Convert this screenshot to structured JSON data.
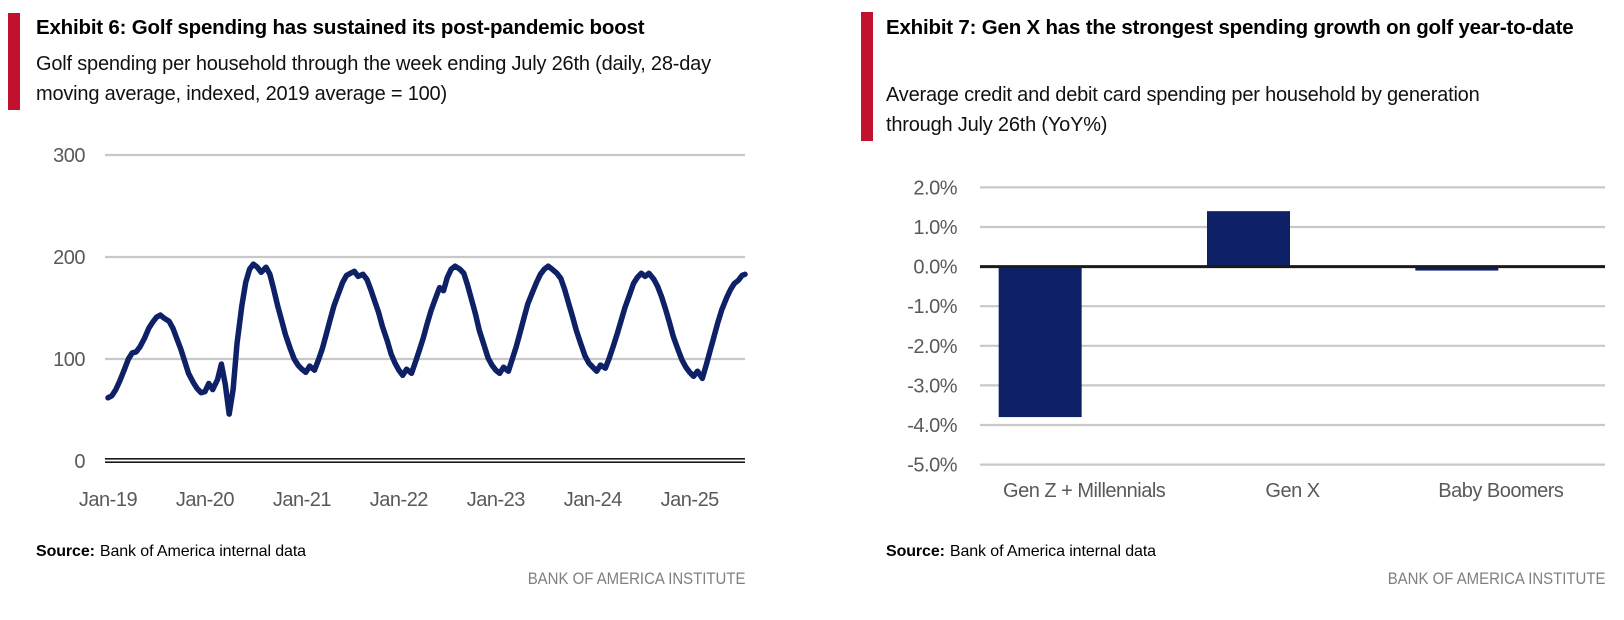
{
  "colors": {
    "accent_red": "#C2112E",
    "navy": "#0E2166",
    "gridline": "#C8C8C8",
    "axis_dark": "#1a1a1a",
    "tick_label": "#595959",
    "institute_gray": "#7f7f7f"
  },
  "left_panel": {
    "exhibit_title": "Exhibit 6: Golf spending has sustained its post-pandemic boost",
    "subtitle": "Golf spending per household through the week ending July 26th (daily, 28-day moving average, indexed, 2019 average = 100)",
    "source_label": "Source:",
    "source_text": "Bank of America internal data",
    "institute": "BANK OF AMERICA INSTITUTE"
  },
  "right_panel": {
    "exhibit_title": "Exhibit 7: Gen X has the strongest spending growth on golf year-to-date",
    "subtitle": "Average credit and debit card spending per household by generation through July 26th (YoY%)",
    "source_label": "Source:",
    "source_text": "Bank of America internal data",
    "institute": "BANK OF AMERICA INSTITUTE"
  },
  "chart_data": [
    {
      "type": "line",
      "title": "Golf spending per household, 28-day moving average, indexed (2019 average = 100)",
      "xlabel": "",
      "ylabel": "",
      "xlim": [
        2019.0,
        2025.57
      ],
      "ylim": [
        0,
        300
      ],
      "y_ticks": [
        0,
        100,
        200,
        300
      ],
      "x_ticks": [
        2019,
        2020,
        2021,
        2022,
        2023,
        2024,
        2025
      ],
      "x_tick_labels": [
        "Jan-19",
        "Jan-20",
        "Jan-21",
        "Jan-22",
        "Jan-23",
        "Jan-24",
        "Jan-25"
      ],
      "grid": true,
      "legend": false,
      "series": [
        {
          "name": "Golf spending index",
          "color": "#0E2166",
          "points": [
            [
              2019.0,
              62
            ],
            [
              2019.04,
              64
            ],
            [
              2019.08,
              70
            ],
            [
              2019.12,
              78
            ],
            [
              2019.17,
              90
            ],
            [
              2019.21,
              100
            ],
            [
              2019.25,
              106
            ],
            [
              2019.29,
              107
            ],
            [
              2019.33,
              112
            ],
            [
              2019.38,
              121
            ],
            [
              2019.42,
              130
            ],
            [
              2019.46,
              136
            ],
            [
              2019.5,
              141
            ],
            [
              2019.54,
              143
            ],
            [
              2019.58,
              140
            ],
            [
              2019.63,
              137
            ],
            [
              2019.67,
              130
            ],
            [
              2019.71,
              120
            ],
            [
              2019.75,
              110
            ],
            [
              2019.79,
              98
            ],
            [
              2019.83,
              86
            ],
            [
              2019.88,
              77
            ],
            [
              2019.92,
              71
            ],
            [
              2019.96,
              67
            ],
            [
              2020.0,
              68
            ],
            [
              2020.04,
              76
            ],
            [
              2020.08,
              70
            ],
            [
              2020.13,
              80
            ],
            [
              2020.17,
              95
            ],
            [
              2020.21,
              75
            ],
            [
              2020.25,
              46
            ],
            [
              2020.29,
              70
            ],
            [
              2020.33,
              115
            ],
            [
              2020.38,
              152
            ],
            [
              2020.42,
              175
            ],
            [
              2020.46,
              188
            ],
            [
              2020.5,
              193
            ],
            [
              2020.54,
              190
            ],
            [
              2020.58,
              185
            ],
            [
              2020.63,
              190
            ],
            [
              2020.67,
              183
            ],
            [
              2020.71,
              168
            ],
            [
              2020.75,
              152
            ],
            [
              2020.79,
              138
            ],
            [
              2020.83,
              124
            ],
            [
              2020.88,
              110
            ],
            [
              2020.92,
              100
            ],
            [
              2020.96,
              94
            ],
            [
              2021.0,
              90
            ],
            [
              2021.04,
              87
            ],
            [
              2021.08,
              93
            ],
            [
              2021.13,
              89
            ],
            [
              2021.17,
              99
            ],
            [
              2021.21,
              110
            ],
            [
              2021.25,
              124
            ],
            [
              2021.29,
              138
            ],
            [
              2021.33,
              152
            ],
            [
              2021.38,
              165
            ],
            [
              2021.42,
              175
            ],
            [
              2021.46,
              182
            ],
            [
              2021.5,
              184
            ],
            [
              2021.54,
              186
            ],
            [
              2021.58,
              181
            ],
            [
              2021.63,
              183
            ],
            [
              2021.67,
              178
            ],
            [
              2021.71,
              168
            ],
            [
              2021.75,
              157
            ],
            [
              2021.79,
              146
            ],
            [
              2021.83,
              132
            ],
            [
              2021.88,
              118
            ],
            [
              2021.92,
              105
            ],
            [
              2021.96,
              96
            ],
            [
              2022.0,
              89
            ],
            [
              2022.04,
              84
            ],
            [
              2022.08,
              90
            ],
            [
              2022.13,
              86
            ],
            [
              2022.17,
              97
            ],
            [
              2022.21,
              108
            ],
            [
              2022.25,
              120
            ],
            [
              2022.29,
              134
            ],
            [
              2022.33,
              147
            ],
            [
              2022.38,
              160
            ],
            [
              2022.42,
              170
            ],
            [
              2022.46,
              167
            ],
            [
              2022.5,
              180
            ],
            [
              2022.54,
              188
            ],
            [
              2022.58,
              191
            ],
            [
              2022.63,
              188
            ],
            [
              2022.67,
              184
            ],
            [
              2022.71,
              172
            ],
            [
              2022.75,
              158
            ],
            [
              2022.79,
              144
            ],
            [
              2022.83,
              128
            ],
            [
              2022.88,
              113
            ],
            [
              2022.92,
              101
            ],
            [
              2022.96,
              94
            ],
            [
              2023.0,
              89
            ],
            [
              2023.04,
              86
            ],
            [
              2023.08,
              92
            ],
            [
              2023.13,
              88
            ],
            [
              2023.17,
              100
            ],
            [
              2023.21,
              112
            ],
            [
              2023.25,
              126
            ],
            [
              2023.29,
              140
            ],
            [
              2023.33,
              154
            ],
            [
              2023.38,
              166
            ],
            [
              2023.42,
              175
            ],
            [
              2023.46,
              183
            ],
            [
              2023.5,
              188
            ],
            [
              2023.54,
              191
            ],
            [
              2023.58,
              188
            ],
            [
              2023.63,
              184
            ],
            [
              2023.67,
              179
            ],
            [
              2023.71,
              168
            ],
            [
              2023.75,
              155
            ],
            [
              2023.79,
              142
            ],
            [
              2023.83,
              128
            ],
            [
              2023.88,
              114
            ],
            [
              2023.92,
              103
            ],
            [
              2023.96,
              96
            ],
            [
              2024.0,
              92
            ],
            [
              2024.04,
              88
            ],
            [
              2024.08,
              94
            ],
            [
              2024.13,
              91
            ],
            [
              2024.17,
              101
            ],
            [
              2024.21,
              112
            ],
            [
              2024.25,
              124
            ],
            [
              2024.29,
              137
            ],
            [
              2024.33,
              150
            ],
            [
              2024.38,
              163
            ],
            [
              2024.42,
              174
            ],
            [
              2024.46,
              180
            ],
            [
              2024.5,
              184
            ],
            [
              2024.54,
              181
            ],
            [
              2024.58,
              184
            ],
            [
              2024.63,
              178
            ],
            [
              2024.67,
              171
            ],
            [
              2024.71,
              161
            ],
            [
              2024.75,
              149
            ],
            [
              2024.79,
              136
            ],
            [
              2024.83,
              122
            ],
            [
              2024.88,
              109
            ],
            [
              2024.92,
              99
            ],
            [
              2024.96,
              92
            ],
            [
              2025.0,
              87
            ],
            [
              2025.04,
              83
            ],
            [
              2025.08,
              88
            ],
            [
              2025.13,
              81
            ],
            [
              2025.17,
              94
            ],
            [
              2025.21,
              108
            ],
            [
              2025.25,
              122
            ],
            [
              2025.29,
              136
            ],
            [
              2025.33,
              148
            ],
            [
              2025.38,
              160
            ],
            [
              2025.42,
              168
            ],
            [
              2025.46,
              174
            ],
            [
              2025.5,
              177
            ],
            [
              2025.54,
              182
            ],
            [
              2025.57,
              183
            ]
          ]
        }
      ]
    },
    {
      "type": "bar",
      "title": "Average credit and debit card spending per household by generation through July 26th (YoY%)",
      "xlabel": "",
      "ylabel": "",
      "categories": [
        "Gen Z + Millennials",
        "Gen X",
        "Baby Boomers"
      ],
      "values": [
        -3.8,
        1.4,
        -0.1
      ],
      "bar_color": "#0E2166",
      "ylim": [
        -5,
        2
      ],
      "y_ticks": [
        2,
        1,
        0,
        -1,
        -2,
        -3,
        -4,
        -5
      ],
      "y_tick_labels": [
        "2.0%",
        "1.0%",
        "0.0%",
        "-1.0%",
        "-2.0%",
        "-3.0%",
        "-4.0%",
        "-5.0%"
      ],
      "grid": true,
      "legend": false
    }
  ]
}
